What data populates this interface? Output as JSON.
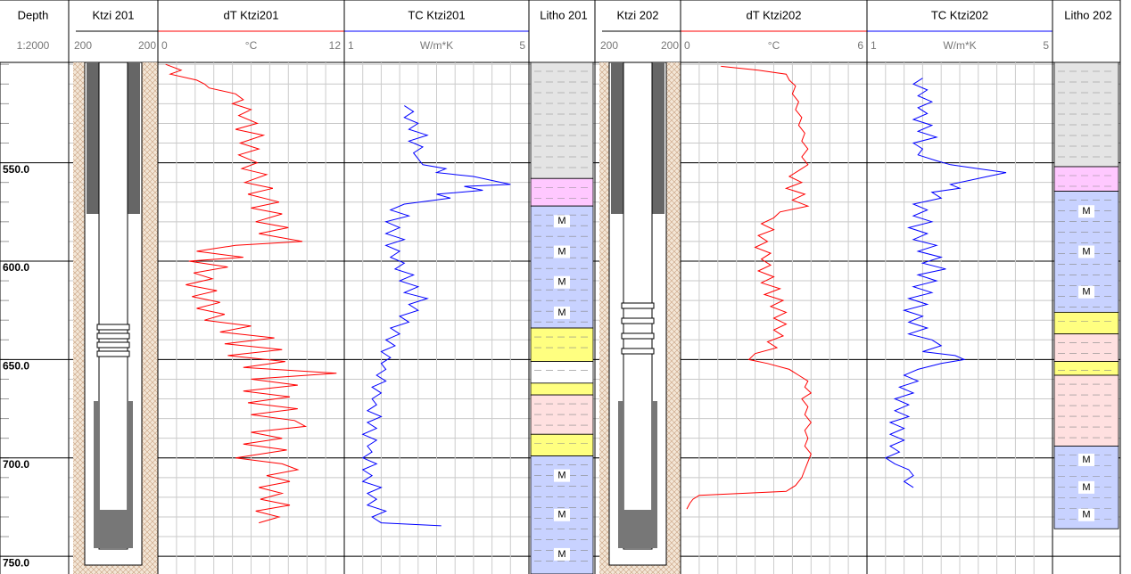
{
  "depth_track": {
    "title": "Depth",
    "scale": "1:2000",
    "ylim": [
      499,
      759
    ],
    "yticks": [
      {
        "value": 550,
        "label": "550.0"
      },
      {
        "value": 600,
        "label": "600.0"
      },
      {
        "value": 650,
        "label": "650.0"
      },
      {
        "value": 700,
        "label": "700.0"
      },
      {
        "value": 750,
        "label": "750.0"
      }
    ]
  },
  "casing_tracks": [
    {
      "title": "Ktzi 201",
      "scale_left": "200",
      "scale_right": "200"
    },
    {
      "title": "Ktzi 202",
      "scale_left": "200",
      "scale_right": "200"
    }
  ],
  "chart_data": [
    {
      "type": "line",
      "title": "dT Ktzi201",
      "unit": "°C",
      "xlim": [
        0,
        12
      ],
      "xticks": [
        0,
        12
      ],
      "series": [
        {
          "color": "#ff0000",
          "x": [
            500,
            503,
            505,
            508,
            510,
            512,
            515,
            518,
            520,
            523,
            526,
            530,
            533,
            536,
            540,
            543,
            546,
            550,
            553,
            556,
            560,
            563,
            566,
            570,
            573,
            576,
            580,
            583,
            586,
            590,
            592,
            595,
            598,
            600,
            603,
            606,
            609,
            612,
            615,
            618,
            621,
            624,
            627,
            630,
            633,
            636,
            639,
            642,
            645,
            648,
            651,
            654,
            657,
            660,
            663,
            666,
            669,
            672,
            675,
            678,
            681,
            684,
            687,
            690,
            693,
            696,
            700,
            703,
            706,
            709,
            712,
            715,
            718,
            721,
            724,
            727,
            730,
            733
          ],
          "values": [
            0.5,
            1.5,
            0.8,
            2.5,
            3.0,
            3.3,
            5.0,
            5.5,
            4.8,
            6.0,
            5.2,
            6.4,
            5.0,
            6.8,
            5.3,
            6.5,
            5.2,
            6.4,
            5.4,
            7.0,
            5.6,
            7.4,
            5.8,
            7.8,
            6.0,
            8.0,
            6.3,
            8.4,
            6.5,
            9.3,
            5.0,
            2.5,
            5.5,
            2.0,
            4.5,
            2.3,
            3.5,
            1.8,
            3.8,
            2.2,
            4.0,
            2.5,
            4.3,
            3.0,
            6.0,
            4.0,
            7.5,
            4.3,
            8.0,
            4.5,
            8.2,
            5.5,
            11.5,
            6.0,
            9.0,
            5.5,
            8.5,
            5.8,
            9.0,
            6.0,
            8.8,
            9.5,
            6.0,
            8.0,
            5.5,
            8.3,
            5.0,
            8.0,
            9.0,
            7.0,
            8.5,
            6.5,
            8.0,
            6.6,
            8.5,
            6.3,
            7.8,
            6.5
          ]
        }
      ]
    },
    {
      "type": "line",
      "title": "TC Ktzi201",
      "unit": "W/m*K",
      "xlim": [
        1,
        5
      ],
      "xticks": [
        1,
        5
      ],
      "series": [
        {
          "color": "#0000ff",
          "x": [
            521,
            524,
            527,
            530,
            533,
            536,
            539,
            542,
            545,
            548,
            551,
            553,
            555,
            557,
            559,
            561,
            562,
            564,
            566,
            568,
            571,
            574,
            577,
            580,
            583,
            586,
            589,
            592,
            595,
            598,
            601,
            604,
            607,
            610,
            613,
            616,
            619,
            622,
            625,
            628,
            631,
            634,
            637,
            640,
            643,
            646,
            649,
            652,
            655,
            658,
            661,
            664,
            667,
            670,
            673,
            676,
            679,
            682,
            685,
            688,
            691,
            694,
            697,
            700,
            703,
            706,
            709,
            712,
            715,
            718,
            721,
            724,
            727,
            730,
            733,
            734.5
          ],
          "values": [
            2.3,
            2.5,
            2.3,
            2.6,
            2.4,
            2.8,
            2.4,
            2.7,
            2.5,
            2.6,
            2.7,
            3.2,
            3.0,
            3.8,
            4.2,
            4.6,
            3.6,
            4.0,
            3.0,
            3.3,
            2.3,
            2.0,
            2.4,
            1.9,
            2.2,
            1.9,
            2.3,
            1.9,
            2.2,
            2.0,
            2.3,
            2.1,
            2.5,
            2.2,
            2.6,
            2.3,
            2.8,
            2.4,
            2.6,
            2.2,
            2.4,
            2.0,
            2.2,
            1.9,
            2.1,
            1.8,
            2.0,
            1.8,
            1.9,
            1.7,
            1.9,
            1.6,
            1.8,
            1.6,
            1.7,
            1.5,
            1.8,
            1.5,
            1.7,
            1.4,
            1.7,
            1.5,
            1.6,
            1.4,
            1.7,
            1.4,
            1.6,
            1.4,
            1.8,
            1.5,
            1.7,
            1.5,
            1.9,
            1.6,
            1.8,
            3.1
          ]
        }
      ]
    },
    {
      "type": "line",
      "title": "dT Ktzi202",
      "unit": "°C",
      "xlim": [
        0,
        6
      ],
      "xticks": [
        0,
        6
      ],
      "series": [
        {
          "color": "#ff0000",
          "x": [
            501,
            503,
            505,
            508,
            511,
            515,
            519,
            523,
            527,
            531,
            535,
            539,
            543,
            547,
            551,
            554,
            557,
            560,
            563,
            566,
            569,
            572,
            575,
            578,
            581,
            584,
            587,
            590,
            593,
            596,
            599,
            602,
            605,
            608,
            611,
            614,
            617,
            620,
            623,
            626,
            629,
            632,
            635,
            638,
            641,
            644,
            647,
            650,
            652,
            655,
            658,
            661,
            664,
            667,
            670,
            674,
            678,
            682,
            686,
            690,
            694,
            698,
            702,
            706,
            710,
            714,
            717,
            718,
            719,
            721,
            723,
            726
          ],
          "values": [
            1.3,
            2.5,
            3.4,
            3.5,
            3.7,
            3.6,
            3.8,
            3.7,
            3.9,
            3.8,
            4.0,
            3.9,
            4.1,
            3.9,
            4.1,
            3.8,
            3.5,
            3.9,
            3.4,
            4.0,
            3.6,
            4.1,
            3.2,
            3.0,
            2.6,
            3.0,
            2.5,
            2.8,
            2.4,
            2.9,
            2.6,
            2.9,
            2.5,
            3.0,
            2.6,
            3.2,
            2.7,
            3.3,
            2.9,
            3.4,
            3.0,
            3.4,
            3.0,
            3.3,
            2.8,
            3.1,
            2.4,
            2.2,
            2.8,
            3.5,
            3.8,
            4.1,
            4.0,
            4.2,
            3.9,
            4.1,
            4.0,
            4.2,
            4.0,
            4.1,
            4.0,
            4.2,
            4.1,
            4.0,
            3.9,
            3.7,
            3.4,
            2.0,
            0.6,
            0.4,
            0.3,
            0.2
          ]
        }
      ]
    },
    {
      "type": "line",
      "title": "TC Ktzi202",
      "unit": "W/m*K",
      "xlim": [
        1,
        5
      ],
      "xticks": [
        1,
        5
      ],
      "series": [
        {
          "color": "#0000ff",
          "x": [
            507,
            510,
            513,
            516,
            519,
            522,
            525,
            528,
            531,
            534,
            537,
            540,
            543,
            546,
            549,
            551,
            553,
            555,
            557,
            559,
            561,
            563,
            565,
            568,
            571,
            574,
            577,
            580,
            583,
            586,
            589,
            592,
            595,
            598,
            601,
            604,
            607,
            610,
            613,
            616,
            619,
            622,
            625,
            628,
            631,
            634,
            637,
            640,
            643,
            646,
            648,
            650,
            652,
            655,
            658,
            661,
            664,
            667,
            670,
            673,
            676,
            679,
            682,
            685,
            688,
            691,
            694,
            697,
            700,
            703,
            706,
            709,
            712,
            715
          ],
          "values": [
            2.2,
            2.0,
            2.3,
            2.1,
            2.4,
            2.1,
            2.3,
            2.0,
            2.4,
            2.1,
            2.5,
            2.0,
            2.2,
            2.1,
            2.5,
            2.8,
            3.4,
            4.0,
            3.6,
            3.2,
            2.8,
            3.0,
            2.4,
            2.6,
            2.0,
            2.3,
            2.0,
            2.4,
            1.9,
            2.3,
            2.0,
            2.5,
            2.1,
            2.6,
            2.2,
            2.7,
            2.1,
            2.5,
            2.0,
            2.4,
            1.9,
            2.3,
            1.8,
            2.2,
            1.9,
            2.3,
            1.9,
            2.4,
            2.6,
            2.2,
            2.9,
            3.1,
            2.6,
            2.1,
            1.8,
            2.1,
            1.7,
            2.0,
            1.6,
            1.9,
            1.6,
            1.9,
            1.5,
            1.8,
            1.5,
            1.8,
            1.5,
            1.7,
            1.4,
            1.6,
            1.9,
            2.0,
            1.8,
            2.0
          ]
        }
      ]
    }
  ],
  "litho_tracks": [
    {
      "title": "Litho 201",
      "layers": [
        {
          "top": 499,
          "bottom": 558,
          "color": "#e4e4e4"
        },
        {
          "top": 558,
          "bottom": 572,
          "color": "#ffc8ff"
        },
        {
          "top": 572,
          "bottom": 634,
          "color": "#c8d2ff",
          "labels": [
            "M",
            "M",
            "M",
            "M"
          ]
        },
        {
          "top": 634,
          "bottom": 651,
          "color": "#ffff80"
        },
        {
          "top": 651,
          "bottom": 662,
          "color": "#ffffff"
        },
        {
          "top": 662,
          "bottom": 668,
          "color": "#ffff80"
        },
        {
          "top": 668,
          "bottom": 688,
          "color": "#ffe0e0"
        },
        {
          "top": 688,
          "bottom": 699,
          "color": "#ffff80"
        },
        {
          "top": 699,
          "bottom": 759,
          "color": "#c8d2ff",
          "labels": [
            "M",
            "M",
            "M"
          ]
        }
      ]
    },
    {
      "title": "Litho 202",
      "layers": [
        {
          "top": 499,
          "bottom": 552,
          "color": "#e4e4e4"
        },
        {
          "top": 552,
          "bottom": 564.5,
          "color": "#ffc8ff"
        },
        {
          "top": 564.5,
          "bottom": 626,
          "color": "#c8d2ff",
          "labels": [
            "M",
            "M",
            "M"
          ]
        },
        {
          "top": 626,
          "bottom": 637,
          "color": "#ffff80"
        },
        {
          "top": 637,
          "bottom": 651,
          "color": "#ffe0e0"
        },
        {
          "top": 651,
          "bottom": 658,
          "color": "#ffff80"
        },
        {
          "top": 658,
          "bottom": 694,
          "color": "#ffe0e0"
        },
        {
          "top": 694,
          "bottom": 736,
          "color": "#c8d2ff",
          "labels": [
            "M",
            "M",
            "M"
          ]
        }
      ]
    }
  ]
}
